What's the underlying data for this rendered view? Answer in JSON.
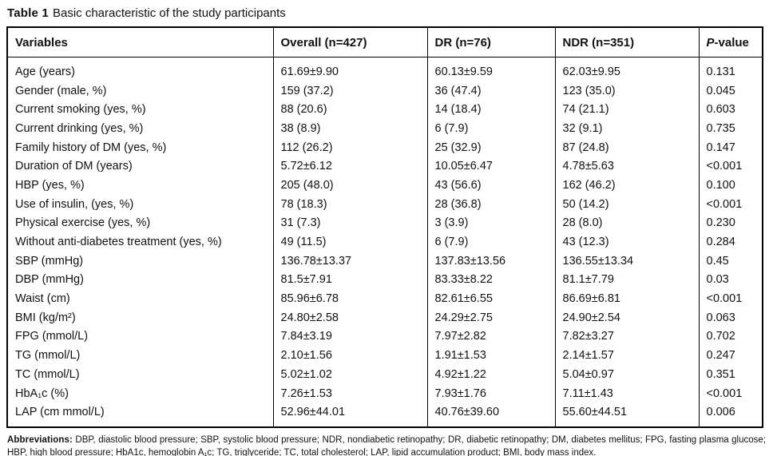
{
  "caption": {
    "label": "Table 1",
    "text": "Basic characteristic of the study participants"
  },
  "table": {
    "columns": [
      {
        "label": "Variables"
      },
      {
        "label": "Overall (n=427)"
      },
      {
        "label": "DR (n=76)"
      },
      {
        "label": "NDR (n=351)"
      },
      {
        "label": "P-value",
        "italic_prefix": "P"
      }
    ],
    "rows": [
      [
        "Age (years)",
        "61.69±9.90",
        "60.13±9.59",
        "62.03±9.95",
        "0.131"
      ],
      [
        "Gender (male, %)",
        "159 (37.2)",
        "36 (47.4)",
        "123 (35.0)",
        "0.045"
      ],
      [
        "Current smoking (yes, %)",
        "88 (20.6)",
        "14 (18.4)",
        "74 (21.1)",
        "0.603"
      ],
      [
        "Current drinking (yes, %)",
        "38 (8.9)",
        "6 (7.9)",
        "32 (9.1)",
        "0.735"
      ],
      [
        "Family history of DM (yes, %)",
        "112 (26.2)",
        "25 (32.9)",
        "87 (24.8)",
        "0.147"
      ],
      [
        "Duration of DM (years)",
        "5.72±6.12",
        "10.05±6.47",
        "4.78±5.63",
        "<0.001"
      ],
      [
        "HBP (yes, %)",
        "205 (48.0)",
        "43 (56.6)",
        "162 (46.2)",
        "0.100"
      ],
      [
        "Use of insulin, (yes, %)",
        "78 (18.3)",
        "28 (36.8)",
        "50 (14.2)",
        "<0.001"
      ],
      [
        "Physical exercise (yes, %)",
        "31 (7.3)",
        "3 (3.9)",
        "28 (8.0)",
        "0.230"
      ],
      [
        "Without anti-diabetes treatment (yes, %)",
        "49 (11.5)",
        "6 (7.9)",
        "43 (12.3)",
        "0.284"
      ],
      [
        "SBP (mmHg)",
        "136.78±13.37",
        "137.83±13.56",
        "136.55±13.34",
        "0.45"
      ],
      [
        "DBP (mmHg)",
        "81.5±7.91",
        "83.33±8.22",
        "81.1±7.79",
        "0.03"
      ],
      [
        "Waist (cm)",
        "85.96±6.78",
        "82.61±6.55",
        "86.69±6.81",
        "<0.001"
      ],
      [
        "BMI (kg/m²)",
        "24.80±2.58",
        "24.29±2.75",
        "24.90±2.54",
        "0.063"
      ],
      [
        "FPG (mmol/L)",
        "7.84±3.19",
        "7.97±2.82",
        "7.82±3.27",
        "0.702"
      ],
      [
        "TG (mmol/L)",
        "2.10±1.56",
        "1.91±1.53",
        "2.14±1.57",
        "0.247"
      ],
      [
        "TC (mmol/L)",
        "5.02±1.02",
        "4.92±1.22",
        "5.04±0.97",
        "0.351"
      ],
      [
        "HbA₁c (%)",
        "7.26±1.53",
        "7.93±1.76",
        "7.11±1.43",
        "<0.001"
      ],
      [
        "LAP (cm mmol/L)",
        "52.96±44.01",
        "40.76±39.60",
        "55.60±44.51",
        "0.006"
      ]
    ]
  },
  "footnote": {
    "label": "Abbreviations:",
    "text": "DBP, diastolic blood pressure; SBP, systolic blood pressure; NDR, nondiabetic retinopathy; DR, diabetic retinopathy; DM, diabetes mellitus; FPG, fasting plasma glucose; HBP, high blood pressure; HbA1c, hemoglobin A₁c; TG, triglyceride; TC, total cholesterol; LAP, lipid accumulation product; BMI, body mass index."
  }
}
